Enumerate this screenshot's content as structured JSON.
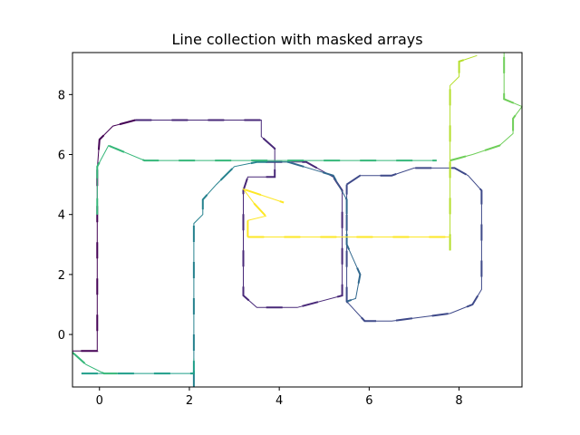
{
  "chart_data": {
    "type": "line",
    "title": "Line collection with masked arrays",
    "xlabel": "",
    "ylabel": "",
    "xlim": [
      -0.6,
      9.4
    ],
    "ylim": [
      -1.75,
      9.4
    ],
    "x_ticks": [
      0,
      2,
      4,
      6,
      8
    ],
    "x_tick_labels": [
      "0",
      "2",
      "4",
      "6",
      "8"
    ],
    "y_ticks": [
      0,
      2,
      4,
      6,
      8
    ],
    "y_tick_labels": [
      "0",
      "2",
      "4",
      "6",
      "8"
    ],
    "grid": false,
    "legend": "none",
    "series": [
      {
        "color": "#440154",
        "points": [
          [
            0.8,
            7.15
          ],
          [
            0.3,
            6.95
          ],
          [
            0,
            6.5
          ],
          [
            -0.05,
            5.5
          ],
          [
            -0.05,
            4.0
          ],
          [
            -0.05,
            2.5
          ],
          [
            -0.05,
            1.0
          ],
          [
            -0.05,
            -0.55
          ],
          [
            -0.6,
            -0.55
          ]
        ]
      },
      {
        "color": "#482878",
        "points": [
          [
            0.8,
            7.15
          ],
          [
            1.6,
            7.15
          ],
          [
            2.5,
            7.15
          ],
          [
            3.6,
            7.15
          ],
          [
            3.6,
            6.6
          ],
          [
            3.9,
            6.2
          ],
          [
            3.9,
            5.25
          ],
          [
            3.3,
            5.25
          ],
          [
            3.2,
            4.8
          ],
          [
            3.2,
            3.5
          ],
          [
            3.2,
            2.0
          ],
          [
            3.2,
            1.3
          ],
          [
            3.5,
            0.9
          ],
          [
            4.4,
            0.9
          ],
          [
            5.4,
            1.3
          ],
          [
            5.4,
            2.5
          ],
          [
            5.4,
            4.8
          ],
          [
            5.2,
            5.25
          ],
          [
            4.6,
            5.75
          ],
          [
            3.5,
            5.75
          ]
        ]
      },
      {
        "color": "#3e4989",
        "points": [
          [
            5.5,
            5.0
          ],
          [
            5.8,
            5.3
          ],
          [
            6.5,
            5.3
          ],
          [
            7.0,
            5.55
          ],
          [
            7.9,
            5.55
          ],
          [
            8.2,
            5.3
          ],
          [
            8.5,
            4.8
          ],
          [
            8.5,
            3.5
          ],
          [
            8.5,
            1.5
          ],
          [
            8.3,
            1.0
          ],
          [
            7.8,
            0.7
          ],
          [
            6.5,
            0.45
          ],
          [
            5.9,
            0.45
          ],
          [
            5.5,
            1.1
          ],
          [
            5.5,
            2.5
          ],
          [
            5.5,
            4.0
          ],
          [
            5.5,
            5.0
          ]
        ]
      },
      {
        "color": "#31688e",
        "points": [
          [
            4.2,
            5.75
          ],
          [
            5.2,
            5.3
          ],
          [
            5.5,
            4.5
          ],
          [
            5.5,
            3.0
          ],
          [
            5.8,
            2.0
          ],
          [
            5.7,
            1.2
          ],
          [
            5.5,
            1.1
          ]
        ]
      },
      {
        "color": "#26828e",
        "points": [
          [
            2.1,
            -1.75
          ],
          [
            2.1,
            -0.5
          ],
          [
            2.1,
            1.5
          ],
          [
            2.1,
            3.0
          ],
          [
            2.1,
            3.7
          ],
          [
            2.3,
            4.0
          ],
          [
            2.3,
            4.5
          ],
          [
            2.6,
            5.0
          ],
          [
            3.0,
            5.6
          ],
          [
            3.5,
            5.75
          ],
          [
            4.2,
            5.75
          ]
        ]
      },
      {
        "color": "#1f9e89",
        "points": [
          [
            -0.4,
            -1.3
          ],
          [
            0.6,
            -1.3
          ],
          [
            1.5,
            -1.3
          ],
          [
            2.1,
            -1.3
          ],
          [
            2.1,
            -0.8
          ]
        ]
      },
      {
        "color": "#35b779",
        "points": [
          [
            -0.6,
            -0.6
          ],
          [
            -0.3,
            -1.0
          ],
          [
            0.1,
            -1.3
          ],
          [
            0.4,
            -1.3
          ]
        ]
      },
      {
        "color": "#35b779",
        "points": [
          [
            -0.05,
            4.0
          ],
          [
            -0.05,
            5.6
          ],
          [
            0.2,
            6.3
          ],
          [
            1.0,
            5.8
          ],
          [
            2.5,
            5.8
          ],
          [
            4.0,
            5.8
          ],
          [
            6.0,
            5.8
          ],
          [
            7.5,
            5.8
          ]
        ]
      },
      {
        "color": "#6ece58",
        "points": [
          [
            7.8,
            5.8
          ],
          [
            8.3,
            6.0
          ],
          [
            8.9,
            6.3
          ],
          [
            9.2,
            6.7
          ],
          [
            9.2,
            7.2
          ],
          [
            9.4,
            7.6
          ],
          [
            9.0,
            7.85
          ],
          [
            9.0,
            8.5
          ],
          [
            9.0,
            9.4
          ]
        ]
      },
      {
        "color": "#b5de2b",
        "points": [
          [
            7.8,
            2.8
          ],
          [
            7.8,
            4.5
          ],
          [
            7.8,
            6.0
          ],
          [
            7.8,
            7.5
          ],
          [
            7.8,
            8.3
          ],
          [
            8.0,
            8.6
          ],
          [
            8.0,
            9.1
          ],
          [
            8.4,
            9.3
          ]
        ]
      },
      {
        "color": "#fde725",
        "points": [
          [
            3.3,
            3.25
          ],
          [
            4.5,
            3.25
          ],
          [
            6.0,
            3.25
          ],
          [
            7.8,
            3.25
          ]
        ]
      },
      {
        "color": "#fde725",
        "points": [
          [
            3.3,
            3.25
          ],
          [
            3.3,
            3.8
          ],
          [
            3.7,
            3.95
          ],
          [
            3.45,
            4.35
          ],
          [
            3.2,
            4.85
          ],
          [
            4.1,
            4.4
          ]
        ]
      }
    ]
  }
}
